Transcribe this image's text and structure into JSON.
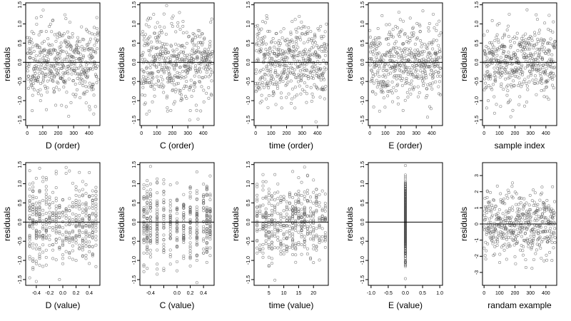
{
  "chart_data": [
    {
      "type": "scatter",
      "xlabel": "D (order)",
      "ylabel": "residuals",
      "xlim": [
        -10,
        470
      ],
      "ylim": [
        -1.65,
        1.55
      ],
      "xticks": [
        0,
        100,
        200,
        300,
        400
      ],
      "xtick_labels": [
        "0",
        "100",
        "200",
        "300",
        "400"
      ],
      "yticks": [
        -1.5,
        -1.0,
        -0.5,
        0.0,
        0.5,
        1.0,
        1.5
      ],
      "ytick_labels": [
        "-1.5",
        "-1.0",
        "-0.5",
        "0.0",
        "0.5",
        "1.0",
        "1.5"
      ],
      "hline": 0,
      "x_mode": "index",
      "n_points": 460,
      "y_sd": 0.5,
      "seed": 11
    },
    {
      "type": "scatter",
      "xlabel": "C (order)",
      "ylabel": "residuals",
      "xlim": [
        -10,
        470
      ],
      "ylim": [
        -1.65,
        1.55
      ],
      "xticks": [
        0,
        100,
        200,
        300,
        400
      ],
      "xtick_labels": [
        "0",
        "100",
        "200",
        "300",
        "400"
      ],
      "yticks": [
        -1.5,
        -1.0,
        -0.5,
        0.0,
        0.5,
        1.0,
        1.5
      ],
      "ytick_labels": [
        "-1.5",
        "-1.0",
        "-0.5",
        "0.0",
        "0.5",
        "1.0",
        "1.5"
      ],
      "hline": 0,
      "x_mode": "index",
      "n_points": 460,
      "y_sd": 0.5,
      "seed": 23
    },
    {
      "type": "scatter",
      "xlabel": "time (order)",
      "ylabel": "residuals",
      "xlim": [
        -10,
        470
      ],
      "ylim": [
        -1.65,
        1.55
      ],
      "xticks": [
        0,
        100,
        200,
        300,
        400
      ],
      "xtick_labels": [
        "0",
        "100",
        "200",
        "300",
        "400"
      ],
      "yticks": [
        -1.5,
        -1.0,
        -0.5,
        0.0,
        0.5,
        1.0,
        1.5
      ],
      "ytick_labels": [
        "-1.5",
        "-1.0",
        "-0.5",
        "0.0",
        "0.5",
        "1.0",
        "1.5"
      ],
      "hline": 0,
      "x_mode": "index",
      "n_points": 460,
      "y_sd": 0.5,
      "seed": 37
    },
    {
      "type": "scatter",
      "xlabel": "E (order)",
      "ylabel": "residuals",
      "xlim": [
        -10,
        470
      ],
      "ylim": [
        -1.65,
        1.55
      ],
      "xticks": [
        0,
        100,
        200,
        300,
        400
      ],
      "xtick_labels": [
        "0",
        "100",
        "200",
        "300",
        "400"
      ],
      "yticks": [
        -1.5,
        -1.0,
        -0.5,
        0.0,
        0.5,
        1.0,
        1.5
      ],
      "ytick_labels": [
        "-1.5",
        "-1.0",
        "-0.5",
        "0.0",
        "0.5",
        "1.0",
        "1.5"
      ],
      "hline": 0,
      "x_mode": "index",
      "n_points": 460,
      "y_sd": 0.5,
      "seed": 41
    },
    {
      "type": "scatter",
      "xlabel": "sample index",
      "ylabel": "residuals",
      "xlim": [
        -10,
        470
      ],
      "ylim": [
        -1.65,
        1.55
      ],
      "xticks": [
        0,
        100,
        200,
        300,
        400
      ],
      "xtick_labels": [
        "0",
        "100",
        "200",
        "300",
        "400"
      ],
      "yticks": [
        -1.5,
        -1.0,
        -0.5,
        0.0,
        0.5,
        1.0,
        1.5
      ],
      "ytick_labels": [
        "-1.5",
        "-1.0",
        "-0.5",
        "0.0",
        "0.5",
        "1.0",
        "1.5"
      ],
      "hline": 0,
      "x_mode": "index",
      "n_points": 460,
      "y_sd": 0.5,
      "seed": 53
    },
    {
      "type": "scatter",
      "xlabel": "D (value)",
      "ylabel": "residuals",
      "xlim": [
        -0.56,
        0.56
      ],
      "ylim": [
        -1.65,
        1.55
      ],
      "xticks": [
        -0.4,
        -0.2,
        0.0,
        0.2,
        0.4
      ],
      "xtick_labels": [
        "-0.4",
        "-0.2",
        "0.0",
        "0.2",
        "0.4"
      ],
      "yticks": [
        -1.5,
        -1.0,
        -0.5,
        0.0,
        0.5,
        1.0,
        1.5
      ],
      "ytick_labels": [
        "-1.5",
        "-1.0",
        "-0.5",
        "0.0",
        "0.5",
        "1.0",
        "1.5"
      ],
      "hline": 0,
      "x_mode": "values",
      "x_values": [
        -0.5,
        -0.45,
        -0.4,
        -0.35,
        -0.3,
        -0.25,
        -0.2,
        -0.15,
        -0.1,
        -0.05,
        0.0,
        0.05,
        0.1,
        0.15,
        0.2,
        0.25,
        0.3,
        0.35,
        0.4,
        0.45,
        0.5
      ],
      "n_points": 460,
      "y_sd": 0.5,
      "seed": 67
    },
    {
      "type": "scatter",
      "xlabel": "C (value)",
      "ylabel": "residuals",
      "xlim": [
        -0.56,
        0.56
      ],
      "ylim": [
        -1.65,
        1.55
      ],
      "xticks": [
        -0.4,
        -0.2,
        0.0,
        0.2,
        0.4
      ],
      "xtick_labels": [
        "-0.4",
        "",
        "0.0",
        "0.2",
        "0.4"
      ],
      "yticks": [
        -1.5,
        -1.0,
        -0.5,
        0.0,
        0.5,
        1.0,
        1.5
      ],
      "ytick_labels": [
        "-1.5",
        "-1.0",
        "-0.5",
        "0.0",
        "0.5",
        "1.0",
        "1.5"
      ],
      "hline": 0,
      "x_mode": "values",
      "x_values": [
        -0.5,
        -0.45,
        -0.4,
        -0.3,
        -0.2,
        -0.1,
        0.0,
        0.1,
        0.2,
        0.3,
        0.4,
        0.45,
        0.5
      ],
      "n_points": 460,
      "y_sd": 0.5,
      "seed": 71
    },
    {
      "type": "scatter",
      "xlabel": "time (value)",
      "ylabel": "residuals",
      "xlim": [
        0,
        25
      ],
      "ylim": [
        -1.65,
        1.55
      ],
      "xticks": [
        5,
        10,
        15,
        20
      ],
      "xtick_labels": [
        "5",
        "10",
        "15",
        "20"
      ],
      "yticks": [
        -1.5,
        -1.0,
        -0.5,
        0.0,
        0.5,
        1.0,
        1.5
      ],
      "ytick_labels": [
        "-1.5",
        "-1.0",
        "-0.5",
        "0.0",
        "0.5",
        "1.0",
        "1.5"
      ],
      "hline": 0,
      "x_mode": "values",
      "x_values": [
        1,
        2,
        3,
        4,
        5,
        6,
        7,
        8,
        9,
        10,
        11,
        12,
        13,
        14,
        15,
        16,
        17,
        18,
        19,
        20,
        21,
        22,
        23,
        24
      ],
      "n_points": 460,
      "y_sd": 0.5,
      "seed": 83
    },
    {
      "type": "scatter",
      "xlabel": "E (value)",
      "ylabel": "residuals",
      "xlim": [
        -1.08,
        1.08
      ],
      "ylim": [
        -1.65,
        1.55
      ],
      "xticks": [
        -1.0,
        -0.5,
        0.0,
        0.5,
        1.0
      ],
      "xtick_labels": [
        "-1.0",
        "-0.5",
        "0.0",
        "0.5",
        "1.0"
      ],
      "yticks": [
        -1.5,
        -1.0,
        -0.5,
        0.0,
        0.5,
        1.0,
        1.5
      ],
      "ytick_labels": [
        "-1.5",
        "-1.0",
        "-0.5",
        "0.0",
        "0.5",
        "1.0",
        "1.5"
      ],
      "hline": 0,
      "x_mode": "values",
      "x_values": [
        0.0
      ],
      "n_points": 460,
      "y_sd": 0.5,
      "seed": 97
    },
    {
      "type": "scatter",
      "xlabel": "randam example",
      "ylabel": "residuals",
      "xlim": [
        -10,
        470
      ],
      "ylim": [
        -3.8,
        3.8
      ],
      "xticks": [
        0,
        100,
        200,
        300,
        400
      ],
      "xtick_labels": [
        "0",
        "100",
        "200",
        "300",
        "400"
      ],
      "yticks": [
        -3,
        -2,
        -1,
        0,
        1,
        2,
        3
      ],
      "ytick_labels": [
        "-3",
        "-2",
        "-1",
        "0",
        "1",
        "2",
        "3"
      ],
      "hline": 0,
      "x_mode": "index",
      "n_points": 460,
      "y_sd": 1.0,
      "seed": 101
    }
  ]
}
